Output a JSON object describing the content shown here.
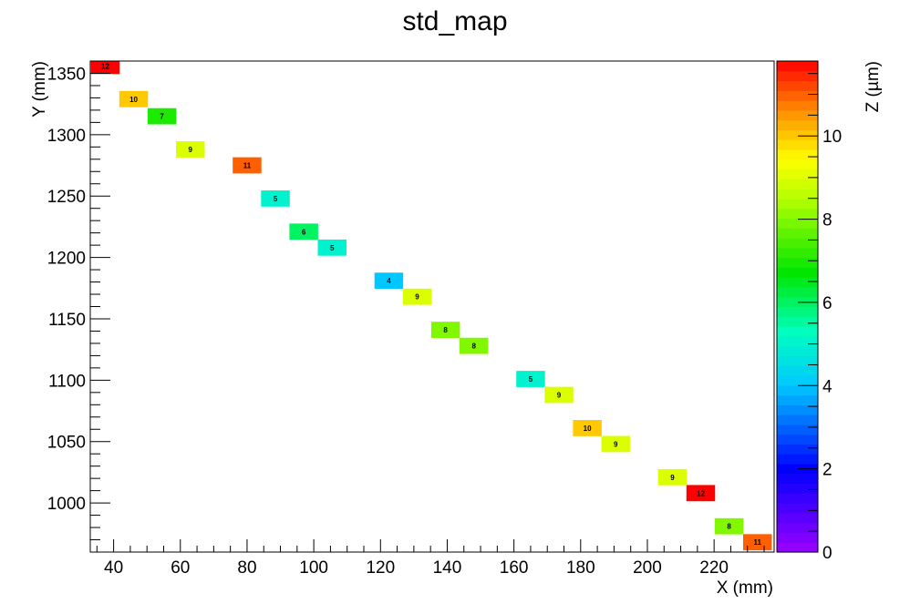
{
  "chart_data": {
    "type": "heatmap",
    "title": "std_map",
    "xlabel": "X (mm)",
    "ylabel": "Y (mm)",
    "zlabel": "Z (µm)",
    "xlim": [
      33,
      238
    ],
    "ylim": [
      960,
      1360
    ],
    "zlim": [
      0,
      11.8
    ],
    "x_ticks": [
      40,
      60,
      80,
      100,
      120,
      140,
      160,
      180,
      200,
      220
    ],
    "y_ticks": [
      1000,
      1050,
      1100,
      1150,
      1200,
      1250,
      1300,
      1350
    ],
    "z_ticks": [
      0,
      2,
      4,
      6,
      8,
      10
    ],
    "grid": false,
    "colorbar": "right",
    "bin_size": [
      8.6,
      13.2
    ],
    "cells": [
      {
        "x": 37.5,
        "y": 1356,
        "z": 12,
        "label": "12"
      },
      {
        "x": 46.0,
        "y": 1329,
        "z": 10,
        "label": "10"
      },
      {
        "x": 54.5,
        "y": 1315,
        "z": 7,
        "label": "7"
      },
      {
        "x": 63.0,
        "y": 1288,
        "z": 9,
        "label": "9"
      },
      {
        "x": 80.0,
        "y": 1275,
        "z": 11,
        "label": "11"
      },
      {
        "x": 88.5,
        "y": 1248,
        "z": 5,
        "label": "5"
      },
      {
        "x": 97.0,
        "y": 1221,
        "z": 6,
        "label": "6"
      },
      {
        "x": 105.5,
        "y": 1208,
        "z": 5,
        "label": "5"
      },
      {
        "x": 122.5,
        "y": 1181,
        "z": 4,
        "label": "4"
      },
      {
        "x": 131.0,
        "y": 1168,
        "z": 9,
        "label": "9"
      },
      {
        "x": 139.5,
        "y": 1141,
        "z": 8,
        "label": "8"
      },
      {
        "x": 148.0,
        "y": 1128,
        "z": 8,
        "label": "8"
      },
      {
        "x": 165.0,
        "y": 1101,
        "z": 5,
        "label": "5"
      },
      {
        "x": 173.5,
        "y": 1088,
        "z": 9,
        "label": "9"
      },
      {
        "x": 182.0,
        "y": 1061,
        "z": 10,
        "label": "10"
      },
      {
        "x": 190.5,
        "y": 1048,
        "z": 9,
        "label": "9"
      },
      {
        "x": 207.5,
        "y": 1021,
        "z": 9,
        "label": "9"
      },
      {
        "x": 216.0,
        "y": 1008,
        "z": 12,
        "label": "12"
      },
      {
        "x": 224.5,
        "y": 981,
        "z": 8,
        "label": "8"
      },
      {
        "x": 233.0,
        "y": 968,
        "z": 11,
        "label": "11"
      }
    ]
  }
}
